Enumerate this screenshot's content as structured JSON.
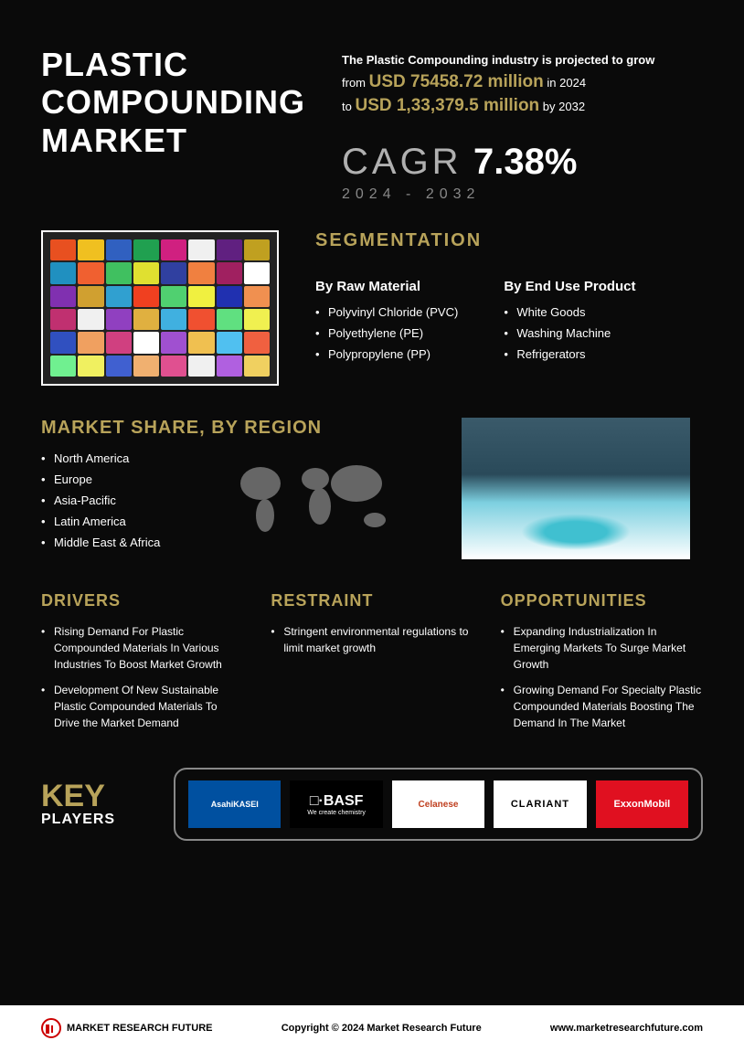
{
  "title": "PLASTIC COMPOUNDING MARKET",
  "projection": {
    "intro": "The Plastic Compounding industry is projected to grow",
    "from_label": "from",
    "from_value": "USD 75458.72 million",
    "from_year": "in 2024",
    "to_label": "to",
    "to_value": "USD 1,33,379.5 million",
    "to_year": "by 2032"
  },
  "cagr": {
    "label": "CAGR",
    "value": "7.38%",
    "years": "2024 - 2032"
  },
  "segmentation": {
    "title": "SEGMENTATION",
    "col1": {
      "heading": "By Raw Material",
      "items": [
        "Polyvinyl Chloride (PVC)",
        "Polyethylene (PE)",
        "Polypropylene (PP)"
      ]
    },
    "col2": {
      "heading": "By End Use Product",
      "items": [
        "White Goods",
        "Washing Machine",
        "Refrigerators"
      ]
    }
  },
  "region": {
    "title": "MARKET SHARE, BY REGION",
    "items": [
      "North America",
      "Europe",
      "Asia-Pacific",
      "Latin America",
      "Middle East & Africa"
    ]
  },
  "drivers": {
    "title": "DRIVERS",
    "items": [
      "Rising Demand For Plastic Compounded Materials In Various Industries To Boost Market Growth",
      "Development Of New Sustainable Plastic Compounded Materials To Drive the Market Demand"
    ]
  },
  "restraint": {
    "title": "RESTRAINT",
    "items": [
      "Stringent environmental regulations to limit market growth"
    ]
  },
  "opportunities": {
    "title": "OPPORTUNITIES",
    "items": [
      "Expanding Industrialization In Emerging Markets To Surge Market Growth",
      "Growing Demand For Specialty Plastic Compounded Materials Boosting The Demand In The Market"
    ]
  },
  "keyplayers": {
    "key": "KEY",
    "players": "PLAYERS",
    "logos": [
      "AsahiKASEI",
      "BASF",
      "Celanese",
      "CLARIANT",
      "ExxonMobil"
    ],
    "basf_tag": "We create chemistry"
  },
  "footer": {
    "brand": "MARKET RESEARCH FUTURE",
    "copyright": "Copyright © 2024 Market Research Future",
    "url": "www.marketresearchfuture.com"
  },
  "colors": {
    "gold": "#b8a35a",
    "bg": "#0a0a0a",
    "text": "#ffffff",
    "muted": "#888888",
    "exxon": "#e01020",
    "asahi": "#0050a0",
    "celanese": "#c04020"
  },
  "pellet_colors": [
    "#e85020",
    "#f0c020",
    "#3060c0",
    "#20a050",
    "#d02080",
    "#f0f0f0",
    "#602080",
    "#c0a020",
    "#2090c0",
    "#f06030",
    "#40c060",
    "#e0e030",
    "#3040a0",
    "#f08040",
    "#a02060",
    "#ffffff",
    "#8030b0",
    "#d0a030",
    "#30a0d0",
    "#f04020",
    "#50d070",
    "#f0f040",
    "#2030b0",
    "#f09050",
    "#c03070",
    "#f0f0f0",
    "#9040c0",
    "#e0b040",
    "#40b0e0",
    "#f05030",
    "#60e080",
    "#f0f050",
    "#3050c0",
    "#f0a060",
    "#d04080",
    "#ffffff",
    "#a050d0",
    "#f0c050",
    "#50c0f0",
    "#f06040",
    "#70f090",
    "#f0f060",
    "#4060d0",
    "#f0b070",
    "#e05090",
    "#f0f0f0",
    "#b060e0",
    "#f0d060"
  ]
}
